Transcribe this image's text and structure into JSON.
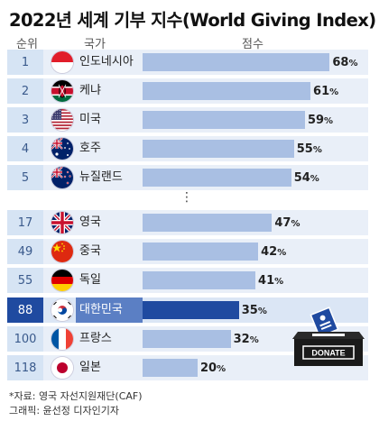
{
  "title": "2022년 세계 기부 지수(World Giving Index)",
  "headers": {
    "rank": "순위",
    "country": "국가",
    "score": "점수"
  },
  "ellipsis": "⋮",
  "footer": {
    "source": "*자료: 영국 자선지원재단(CAF)",
    "credit": "그래픽: 윤선정 디자인기자"
  },
  "donate_icon": {
    "name": "donation-box-icon",
    "label": "DONATE"
  },
  "colors": {
    "bar": "#a9bfe3",
    "bar_highlight": "#1f4aa0",
    "rank_bg": "#d6e4f4",
    "row_bg": "#e9eff8"
  },
  "percent_sign": "%",
  "chart_data": {
    "type": "bar",
    "orientation": "horizontal",
    "title": "2022년 세계 기부 지수(World Giving Index)",
    "xlim": [
      0,
      75
    ],
    "grid": false,
    "highlight": "대한민국",
    "rows": [
      {
        "rank": "1",
        "country": "인도네시아",
        "flag": "indonesia-flag-icon",
        "value": 68
      },
      {
        "rank": "2",
        "country": "케냐",
        "flag": "kenya-flag-icon",
        "value": 61
      },
      {
        "rank": "3",
        "country": "미국",
        "flag": "usa-flag-icon",
        "value": 59
      },
      {
        "rank": "4",
        "country": "호주",
        "flag": "australia-flag-icon",
        "value": 55
      },
      {
        "rank": "5",
        "country": "뉴질랜드",
        "flag": "new-zealand-flag-icon",
        "value": 54
      },
      {
        "rank": "17",
        "country": "영국",
        "flag": "uk-flag-icon",
        "value": 47
      },
      {
        "rank": "49",
        "country": "중국",
        "flag": "china-flag-icon",
        "value": 42
      },
      {
        "rank": "55",
        "country": "독일",
        "flag": "germany-flag-icon",
        "value": 41
      },
      {
        "rank": "88",
        "country": "대한민국",
        "flag": "south-korea-flag-icon",
        "value": 35
      },
      {
        "rank": "100",
        "country": "프랑스",
        "flag": "france-flag-icon",
        "value": 32
      },
      {
        "rank": "118",
        "country": "일본",
        "flag": "japan-flag-icon",
        "value": 20
      }
    ]
  }
}
